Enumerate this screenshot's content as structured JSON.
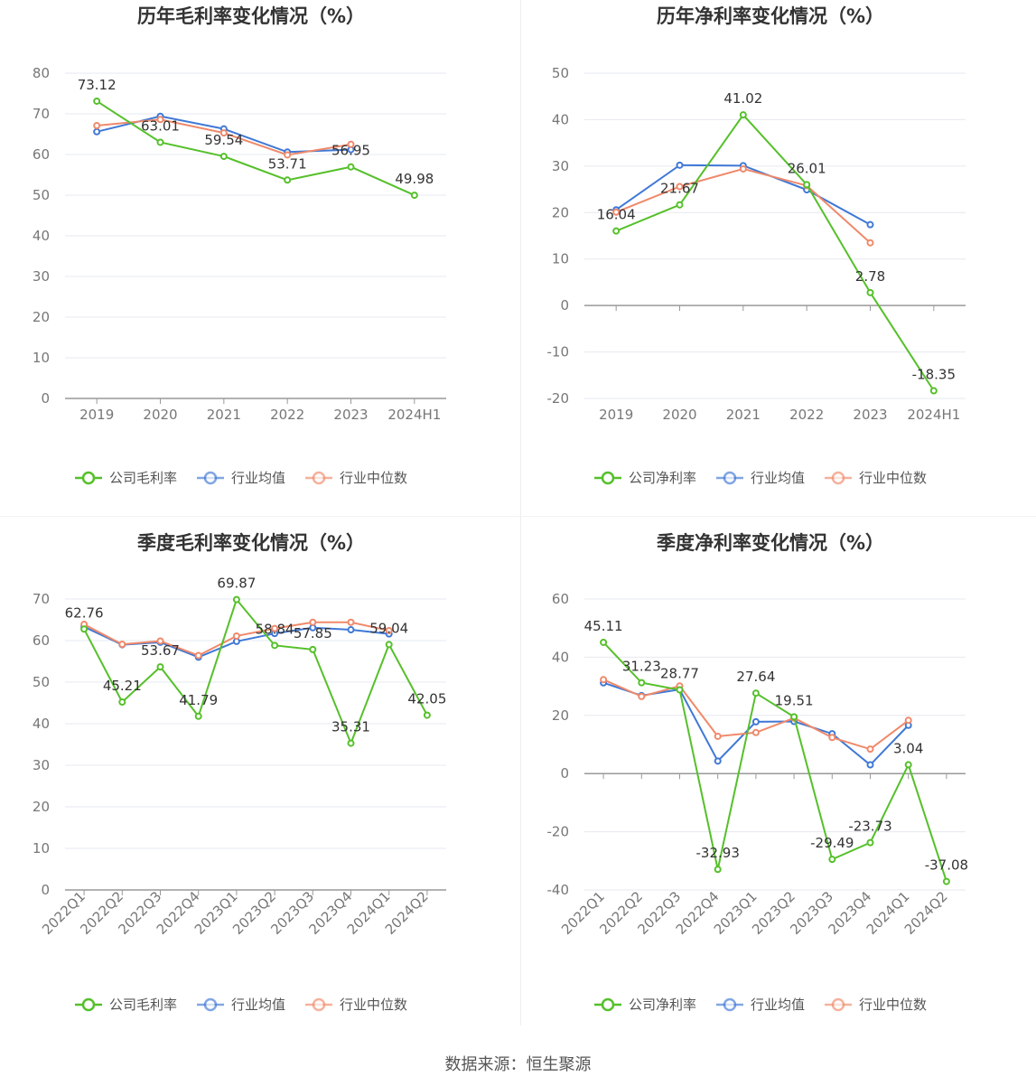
{
  "colors": {
    "company": "#55c02a",
    "avg": "#3f78d6",
    "median": "#f0896a",
    "grid": "#e6e8f0",
    "axis": "#999999"
  },
  "footer": "数据来源：恒生聚源",
  "chart_data": [
    {
      "type": "line",
      "title": "历年毛利率变化情况（%）",
      "categories": [
        "2019",
        "2020",
        "2021",
        "2022",
        "2023",
        "2024H1"
      ],
      "ylim": [
        0,
        80
      ],
      "yticks": [
        0,
        10,
        20,
        30,
        40,
        50,
        60,
        70,
        80
      ],
      "rotate_xlabels": false,
      "legend_position": "bottom",
      "grid": true,
      "series": [
        {
          "name": "公司毛利率",
          "role": "company",
          "values": [
            73.12,
            63.01,
            59.54,
            53.71,
            56.95,
            49.98
          ],
          "labels": [
            "73.12",
            "63.01",
            "59.54",
            "53.71",
            "56.95",
            "49.98"
          ]
        },
        {
          "name": "行业均值",
          "role": "avg",
          "values": [
            65.6,
            69.4,
            66.3,
            60.6,
            61.2,
            null
          ]
        },
        {
          "name": "行业中位数",
          "role": "median",
          "values": [
            67.1,
            68.6,
            65.3,
            59.9,
            62.5,
            null
          ]
        }
      ]
    },
    {
      "type": "line",
      "title": "历年净利率变化情况（%）",
      "categories": [
        "2019",
        "2020",
        "2021",
        "2022",
        "2023",
        "2024H1"
      ],
      "ylim": [
        -20,
        50
      ],
      "yticks": [
        -20,
        -10,
        0,
        10,
        20,
        30,
        40,
        50
      ],
      "rotate_xlabels": false,
      "legend_position": "bottom",
      "grid": true,
      "series": [
        {
          "name": "公司净利率",
          "role": "company",
          "values": [
            16.04,
            21.67,
            41.02,
            26.01,
            2.78,
            -18.35
          ],
          "labels": [
            "16.04",
            "21.67",
            "41.02",
            "26.01",
            "2.78",
            "-18.35"
          ]
        },
        {
          "name": "行业均值",
          "role": "avg",
          "values": [
            20.6,
            30.2,
            30.1,
            24.9,
            17.4,
            null
          ]
        },
        {
          "name": "行业中位数",
          "role": "median",
          "values": [
            20.1,
            25.6,
            29.4,
            25.8,
            13.5,
            null
          ]
        }
      ]
    },
    {
      "type": "line",
      "title": "季度毛利率变化情况（%）",
      "categories": [
        "2022Q1",
        "2022Q2",
        "2022Q3",
        "2022Q4",
        "2023Q1",
        "2023Q2",
        "2023Q3",
        "2023Q4",
        "2024Q1",
        "2024Q2"
      ],
      "ylim": [
        0,
        70
      ],
      "yticks": [
        0,
        10,
        20,
        30,
        40,
        50,
        60,
        70
      ],
      "rotate_xlabels": true,
      "legend_position": "bottom",
      "grid": true,
      "series": [
        {
          "name": "公司毛利率",
          "role": "company",
          "values": [
            62.76,
            45.21,
            53.67,
            41.79,
            69.87,
            58.84,
            57.85,
            35.31,
            59.04,
            42.05
          ],
          "labels": [
            "62.76",
            "45.21",
            "53.67",
            "41.79",
            "69.87",
            "58.84",
            "57.85",
            "35.31",
            "59.04",
            "42.05"
          ]
        },
        {
          "name": "行业均值",
          "role": "avg",
          "values": [
            63.3,
            59.0,
            59.6,
            56.0,
            59.8,
            61.7,
            63.1,
            62.6,
            61.6,
            null
          ]
        },
        {
          "name": "行业中位数",
          "role": "median",
          "values": [
            63.9,
            59.1,
            59.9,
            56.4,
            61.1,
            62.9,
            64.4,
            64.4,
            62.4,
            null
          ]
        }
      ]
    },
    {
      "type": "line",
      "title": "季度净利率变化情况（%）",
      "categories": [
        "2022Q1",
        "2022Q2",
        "2022Q3",
        "2022Q4",
        "2023Q1",
        "2023Q2",
        "2023Q3",
        "2023Q4",
        "2024Q1",
        "2024Q2"
      ],
      "ylim": [
        -40,
        60
      ],
      "yticks": [
        -40,
        -20,
        0,
        20,
        40,
        60
      ],
      "rotate_xlabels": true,
      "legend_position": "bottom",
      "grid": true,
      "series": [
        {
          "name": "公司净利率",
          "role": "company",
          "values": [
            45.11,
            31.23,
            28.77,
            -32.93,
            27.64,
            19.51,
            -29.49,
            -23.73,
            3.04,
            -37.08
          ],
          "labels": [
            "45.11",
            "31.23",
            "28.77",
            "-32.93",
            "27.64",
            "19.51",
            "-29.49",
            "-23.73",
            "3.04",
            "-37.08"
          ]
        },
        {
          "name": "行业均值",
          "role": "avg",
          "values": [
            31.2,
            26.8,
            28.9,
            4.3,
            17.8,
            17.9,
            13.7,
            3.0,
            16.6,
            null
          ]
        },
        {
          "name": "行业中位数",
          "role": "median",
          "values": [
            32.3,
            26.5,
            30.1,
            12.8,
            14.1,
            19.1,
            12.4,
            8.4,
            18.3,
            null
          ]
        }
      ]
    }
  ]
}
